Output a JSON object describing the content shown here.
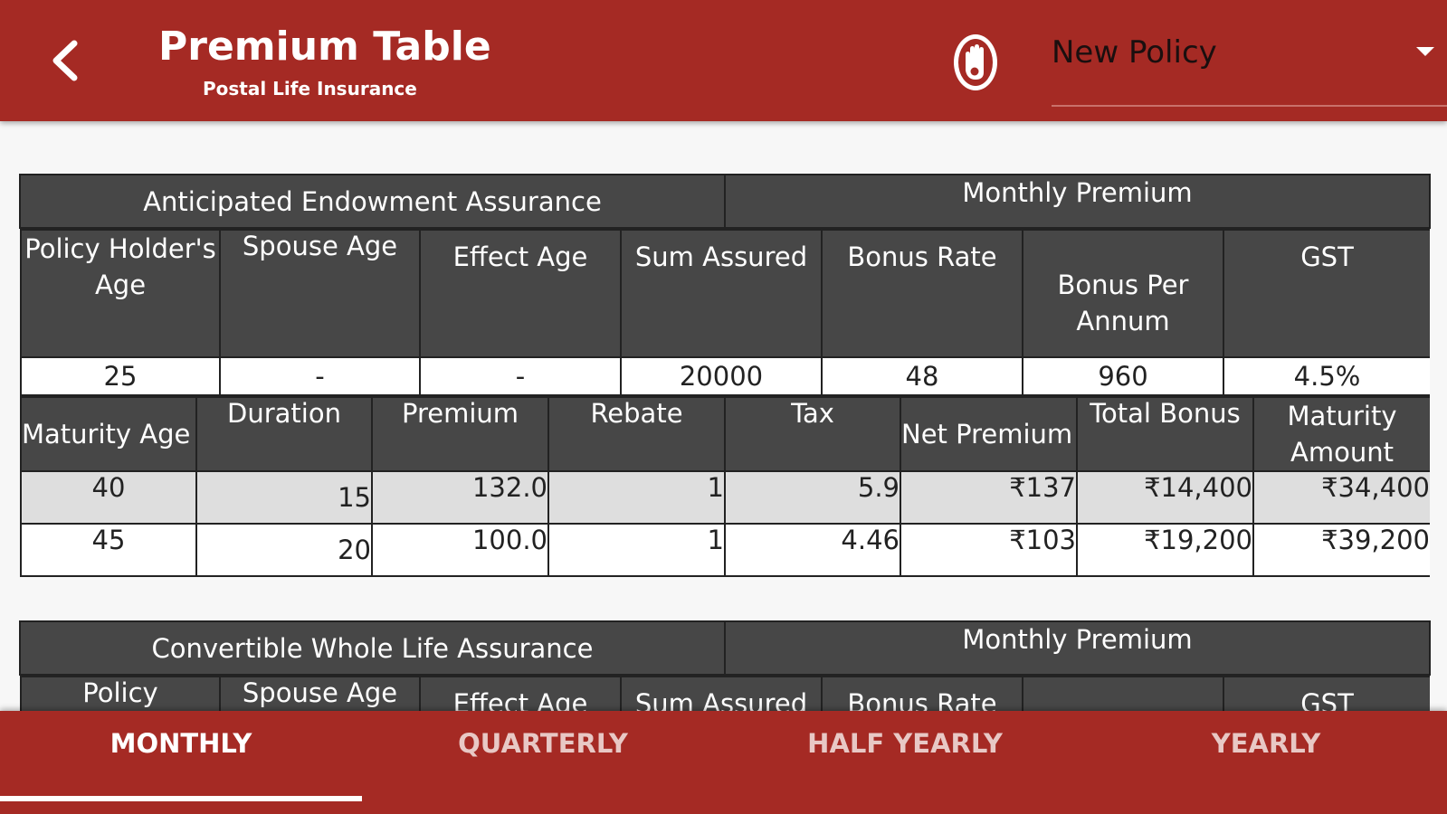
{
  "header": {
    "title": "Premium Table",
    "subtitle": "Postal Life Insurance",
    "policy_value": "New Policy"
  },
  "tables": [
    {
      "name": "Anticipated Endowment Assurance",
      "mode": "Monthly  Premium",
      "info_headers": [
        "Policy Holder's Age",
        "Spouse Age",
        "Effect Age",
        "Sum Assured",
        "Bonus Rate",
        "Bonus Per Annum",
        "GST"
      ],
      "info_values": [
        "25",
        "-",
        "-",
        "20000",
        "48",
        "960",
        "4.5%"
      ],
      "result_headers": [
        "Maturity Age",
        "Duration",
        "Premium",
        "Rebate",
        "Tax",
        "Net Premium",
        "Total Bonus",
        "Maturity Amount"
      ],
      "rows": [
        [
          "40",
          "15",
          "132.0",
          "1",
          "5.9",
          "₹137",
          "₹14,400",
          "₹34,400"
        ],
        [
          "45",
          "20",
          "100.0",
          "1",
          "4.46",
          "₹103",
          "₹19,200",
          "₹39,200"
        ]
      ]
    },
    {
      "name": "Convertible Whole Life Assurance",
      "mode": "Monthly  Premium",
      "info_headers": [
        "Policy",
        "Spouse Age",
        "Effect Age",
        "Sum Assured",
        "Bonus Rate",
        "",
        "GST"
      ]
    }
  ],
  "tabs": [
    {
      "label": "MONTHLY",
      "active": true
    },
    {
      "label": "QUARTERLY",
      "active": false
    },
    {
      "label": "HALF YEARLY",
      "active": false
    },
    {
      "label": "YEARLY",
      "active": false
    }
  ],
  "colors": {
    "brand": "#a52a24",
    "header_cell": "#474747",
    "stripe_row": "#dedede"
  },
  "icons": {
    "back": "chevron-left-icon",
    "logo": "hand-emblem-logo",
    "dropdown": "caret-down-icon"
  }
}
